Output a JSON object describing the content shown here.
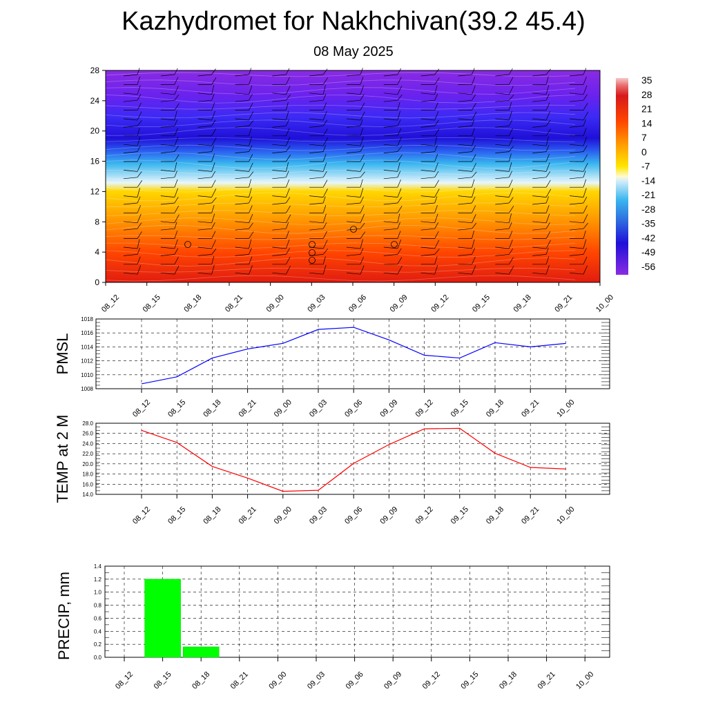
{
  "title": "Kazhydromet for Nakhchivan(39.2 45.4)",
  "subtitle": "08 May 2025",
  "time_labels": [
    "08_12",
    "08_15",
    "08_18",
    "08_21",
    "09_00",
    "09_03",
    "09_06",
    "09_09",
    "09_12",
    "09_15",
    "09_18",
    "09_21",
    "10_00"
  ],
  "chart_data": [
    {
      "type": "heatmap",
      "name": "vertical temperature cross-section",
      "x": [
        "08_12",
        "08_15",
        "08_18",
        "08_21",
        "09_00",
        "09_03",
        "09_06",
        "09_09",
        "09_12",
        "09_15",
        "09_18",
        "09_21",
        "10_00"
      ],
      "ylim": [
        0,
        28
      ],
      "yticks": [
        0,
        4,
        8,
        12,
        16,
        20,
        24,
        28
      ],
      "colorbar_labels": [
        "35",
        "28",
        "21",
        "14",
        "7",
        "0",
        "-7",
        "-14",
        "-21",
        "-28",
        "-35",
        "-42",
        "-49",
        "-56"
      ],
      "colors": [
        "#f4b6b6",
        "#d7191c",
        "#ff4500",
        "#ff8c00",
        "#ffd700",
        "#fff8b0",
        "#bfe3f7",
        "#39b6ef",
        "#2f6fe0",
        "#2a24f0",
        "#3a1ae0",
        "#8a2be2"
      ]
    },
    {
      "type": "line",
      "ylabel": "PMSL",
      "x": [
        "08_12",
        "08_15",
        "08_18",
        "08_21",
        "09_00",
        "09_03",
        "09_06",
        "09_09",
        "09_12",
        "09_15",
        "09_18",
        "09_21",
        "10_00"
      ],
      "values": [
        1008.7,
        1009.7,
        1012.4,
        1013.7,
        1014.5,
        1016.5,
        1016.8,
        1015.0,
        1012.8,
        1012.4,
        1014.6,
        1014.0,
        1014.5
      ],
      "ylim": [
        1008,
        1018
      ],
      "yticks": [
        "1008",
        "1010",
        "1012",
        "1014",
        "1016",
        "1018"
      ],
      "color": "#0000ff"
    },
    {
      "type": "line",
      "ylabel": "TEMP at 2 M",
      "x": [
        "08_12",
        "08_15",
        "08_18",
        "08_21",
        "09_00",
        "09_03",
        "09_06",
        "09_09",
        "09_12",
        "09_15",
        "09_18",
        "09_21",
        "10_00"
      ],
      "values": [
        26.6,
        24.2,
        19.5,
        17.2,
        14.6,
        14.8,
        20.1,
        23.8,
        26.9,
        27.0,
        22.1,
        19.3,
        19.0
      ],
      "ylim": [
        14,
        28
      ],
      "yticks": [
        "14.0",
        "16.0",
        "18.0",
        "20.0",
        "22.0",
        "24.0",
        "26.0",
        "28.0"
      ],
      "color": "#ff0000"
    },
    {
      "type": "bar",
      "ylabel": "PRECIP, mm",
      "categories": [
        "08_15",
        "08_18"
      ],
      "values": [
        1.2,
        0.16
      ],
      "x": [
        "08_12",
        "08_15",
        "08_18",
        "08_21",
        "09_00",
        "09_03",
        "09_06",
        "09_09",
        "09_12",
        "09_15",
        "09_18",
        "09_21",
        "10_00"
      ],
      "ylim": [
        0,
        1.4
      ],
      "yticks": [
        "0.0",
        "0.2",
        "0.4",
        "0.6",
        "0.8",
        "1.0",
        "1.2",
        "1.4"
      ],
      "color": "#00ff00"
    }
  ]
}
